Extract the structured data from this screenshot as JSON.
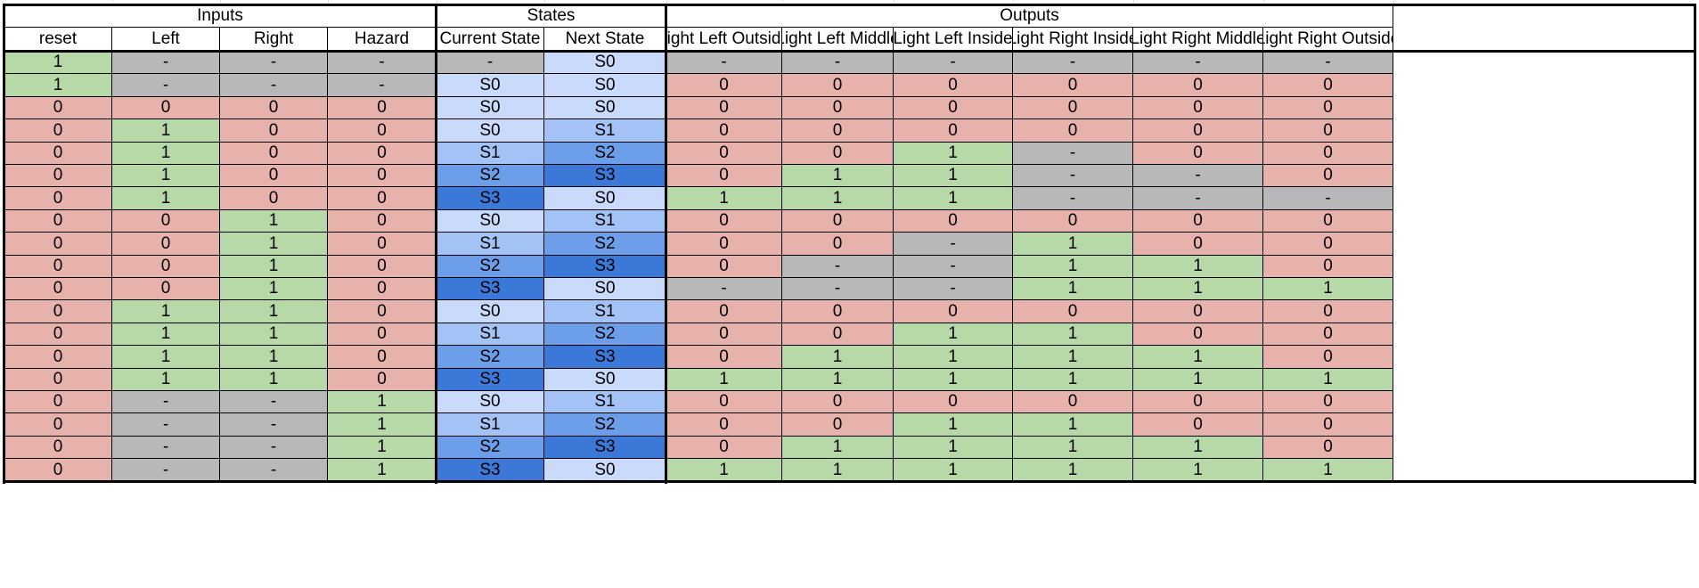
{
  "groups": [
    {
      "label": "Inputs",
      "span": 4
    },
    {
      "label": "States",
      "span": 2
    },
    {
      "label": "Outputs",
      "span": 6
    }
  ],
  "columns": [
    "reset",
    "Left",
    "Right",
    "Hazard",
    "Current State",
    "Next State",
    "Light Left Outside",
    "Light Left Middle",
    "Light Left Inside",
    "Light Right Inside",
    "Light Right Middle",
    "Light Right Outside"
  ],
  "rows": [
    [
      "1",
      "-",
      "-",
      "-",
      "-",
      "S0",
      "-",
      "-",
      "-",
      "-",
      "-",
      "-"
    ],
    [
      "1",
      "-",
      "-",
      "-",
      "S0",
      "S0",
      "0",
      "0",
      "0",
      "0",
      "0",
      "0"
    ],
    [
      "0",
      "0",
      "0",
      "0",
      "S0",
      "S0",
      "0",
      "0",
      "0",
      "0",
      "0",
      "0"
    ],
    [
      "0",
      "1",
      "0",
      "0",
      "S0",
      "S1",
      "0",
      "0",
      "0",
      "0",
      "0",
      "0"
    ],
    [
      "0",
      "1",
      "0",
      "0",
      "S1",
      "S2",
      "0",
      "0",
      "1",
      "-",
      "0",
      "0"
    ],
    [
      "0",
      "1",
      "0",
      "0",
      "S2",
      "S3",
      "0",
      "1",
      "1",
      "-",
      "-",
      "0"
    ],
    [
      "0",
      "1",
      "0",
      "0",
      "S3",
      "S0",
      "1",
      "1",
      "1",
      "-",
      "-",
      "-"
    ],
    [
      "0",
      "0",
      "1",
      "0",
      "S0",
      "S1",
      "0",
      "0",
      "0",
      "0",
      "0",
      "0"
    ],
    [
      "0",
      "0",
      "1",
      "0",
      "S1",
      "S2",
      "0",
      "0",
      "-",
      "1",
      "0",
      "0"
    ],
    [
      "0",
      "0",
      "1",
      "0",
      "S2",
      "S3",
      "0",
      "-",
      "-",
      "1",
      "1",
      "0"
    ],
    [
      "0",
      "0",
      "1",
      "0",
      "S3",
      "S0",
      "-",
      "-",
      "-",
      "1",
      "1",
      "1"
    ],
    [
      "0",
      "1",
      "1",
      "0",
      "S0",
      "S1",
      "0",
      "0",
      "0",
      "0",
      "0",
      "0"
    ],
    [
      "0",
      "1",
      "1",
      "0",
      "S1",
      "S2",
      "0",
      "0",
      "1",
      "1",
      "0",
      "0"
    ],
    [
      "0",
      "1",
      "1",
      "0",
      "S2",
      "S3",
      "0",
      "1",
      "1",
      "1",
      "1",
      "0"
    ],
    [
      "0",
      "1",
      "1",
      "0",
      "S3",
      "S0",
      "1",
      "1",
      "1",
      "1",
      "1",
      "1"
    ],
    [
      "0",
      "-",
      "-",
      "1",
      "S0",
      "S1",
      "0",
      "0",
      "0",
      "0",
      "0",
      "0"
    ],
    [
      "0",
      "-",
      "-",
      "1",
      "S1",
      "S2",
      "0",
      "0",
      "1",
      "1",
      "0",
      "0"
    ],
    [
      "0",
      "-",
      "-",
      "1",
      "S2",
      "S3",
      "0",
      "1",
      "1",
      "1",
      "1",
      "0"
    ],
    [
      "0",
      "-",
      "-",
      "1",
      "S3",
      "S0",
      "1",
      "1",
      "1",
      "1",
      "1",
      "1"
    ]
  ],
  "colors": {
    "one": "#b7d9a8",
    "zero": "#e7b2ab",
    "dont_care": "#b8b8b8",
    "S0": "#c9dafb",
    "S1": "#a3c2f5",
    "S2": "#6d9ee9",
    "S3": "#3b78d8"
  }
}
